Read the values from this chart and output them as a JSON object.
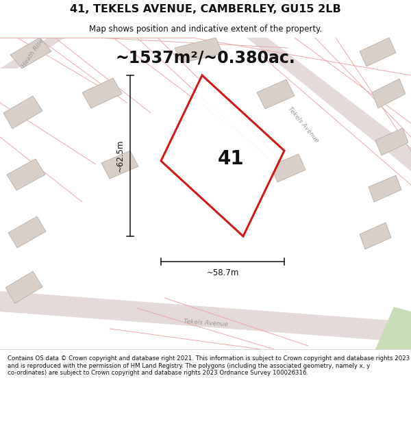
{
  "title": "41, TEKELS AVENUE, CAMBERLEY, GU15 2LB",
  "subtitle": "Map shows position and indicative extent of the property.",
  "area_text": "~1537m²/~0.380ac.",
  "label_41": "41",
  "dim_width": "~58.7m",
  "dim_height": "~62.5m",
  "footer": "Contains OS data © Crown copyright and database right 2021. This information is subject to Crown copyright and database rights 2023 and is reproduced with the permission of HM Land Registry. The polygons (including the associated geometry, namely x, y co-ordinates) are subject to Crown copyright and database rights 2023 Ordnance Survey 100026316.",
  "map_bg": "#f2efea",
  "plot_outline_color": "#cc0000",
  "plot_lw": 2.2,
  "dim_color": "#111111",
  "title_fontsize": 11.5,
  "subtitle_fontsize": 8.5,
  "area_fontsize": 17,
  "label_fontsize": 20,
  "footer_fontsize": 6.2,
  "road_label_color": "#999999",
  "road_label_fontsize": 6.5,
  "cadastral_color": "#e8aaaa",
  "cadastral_lw": 0.7,
  "road_band_color": "#e5dada",
  "building_face": "#d8d0c8",
  "building_edge": "#b8b0a8",
  "green_color": "#c8ddb8"
}
